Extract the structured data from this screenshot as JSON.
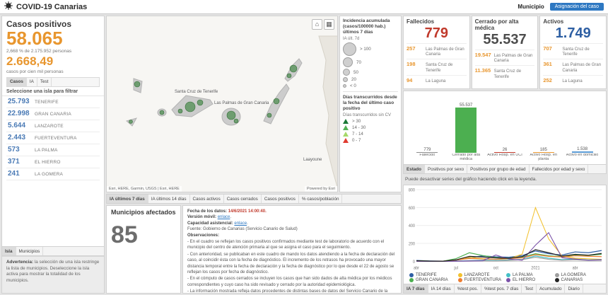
{
  "colors": {
    "accent_orange": "#e8962e",
    "island_value_blue": "#4a7ab5",
    "assign_button_blue": "#2e78c2",
    "selected_tab_bg": "#dcdcdc",
    "fallecidos_red": "#c0392b",
    "cerrado_gray": "#4d4d4d",
    "activos_blue": "#2e5fa3"
  },
  "header": {
    "title": "COVID-19 Canarias",
    "municipio_label": "Municipio",
    "assign_button": "Asignación del caso"
  },
  "left": {
    "title": "Casos positivos",
    "total": "58.065",
    "subtitle": "2,668 % de 2.175.952 personas",
    "rate": "2.668,49",
    "rate_label": "casos por cien mil personas",
    "tabs": [
      {
        "label": "Casos",
        "selected": true
      },
      {
        "label": "IA",
        "selected": false
      },
      {
        "label": "Test",
        "selected": false
      }
    ],
    "filter_label": "Seleccione una isla para filtrar",
    "islands": [
      {
        "value": "25.793",
        "name": "TENERIFE"
      },
      {
        "value": "22.998",
        "name": "GRAN CANARIA"
      },
      {
        "value": "5.644",
        "name": "LANZAROTE"
      },
      {
        "value": "2.443",
        "name": "FUERTEVENTURA"
      },
      {
        "value": "573",
        "name": "LA PALMA"
      },
      {
        "value": "371",
        "name": "EL HIERRO"
      },
      {
        "value": "241",
        "name": "LA GOMERA"
      }
    ],
    "bottom_tabs": [
      {
        "label": "Isla",
        "selected": true
      },
      {
        "label": "Municipios",
        "selected": false
      }
    ],
    "warning_title": "Advertencia:",
    "warning_text": " la selección de una isla restringe la lista de municipios. Deseleccione la isla activa para mostrar la totalidad de los municipios."
  },
  "map": {
    "labels": [
      "Santa Cruz de Tenerife",
      "Las Palmas de Gran Canaria",
      "Laayoune"
    ],
    "attribution": "Esri, HERE, Garmin, USGS | Esri, HERE",
    "powered": "Powered by Esri",
    "tabs": [
      {
        "label": "IA últimos 7 días",
        "selected": true
      },
      {
        "label": "IA últimos 14 días",
        "selected": false
      },
      {
        "label": "Casos activos",
        "selected": false
      },
      {
        "label": "Casos cerrados",
        "selected": false
      },
      {
        "label": "Casos positivos",
        "selected": false
      },
      {
        "label": "% casos/población",
        "selected": false
      }
    ]
  },
  "legend": {
    "title": "Incidencia acumulada (casos/100000 hab.) últimos 7 días",
    "subtitle": "IA últ. 7d",
    "circles": [
      {
        "label": "> 100",
        "size": 19
      },
      {
        "label": "70",
        "size": 14
      },
      {
        "label": "50",
        "size": 10
      },
      {
        "label": "20",
        "size": 7
      },
      {
        "label": "< 0",
        "size": 5
      }
    ],
    "days_title": "Días transcurridos desde la fecha del último caso positivo",
    "days_subtitle": "Días transcurridos sin CV",
    "days_classes": [
      {
        "label": "> 30",
        "color": "#1b7837"
      },
      {
        "label": "14 - 30",
        "color": "#52b153"
      },
      {
        "label": "7 - 14",
        "color": "#a6d96a"
      },
      {
        "label": "0 - 7",
        "color": "#e03b30"
      }
    ]
  },
  "municipios": {
    "title": "Municipios afectados",
    "value": "85"
  },
  "info": {
    "fecha_label": "Fecha de los datos: ",
    "fecha": "14/6/2021 14:00:40.",
    "version_label": "Versión móvil: ",
    "version_link": "enlace",
    "capacidad_label": "Capacidad asistencial: ",
    "capacidad_link": "enlace",
    "fuente": "Fuente: Gobierno de Canarias (Servicio Canario de Salud)",
    "observaciones_title": "Observaciones:",
    "observaciones": [
      "- En el cuadro se reflejan los casos positivos confirmados mediante test de laboratorio de acuerdo con el municipio del centro de atención primaria al que se asigna el caso para el seguimiento.",
      "- Con anterioridad, se publicaban en este cuadro de mando los datos atendiendo a la fecha de declaración del caso, al coincidir ésta con la fecha de diagnóstico. El incremento de los retrasos ha provocado una mayor distancia temporal entre la fecha de declaración y la fecha de diagnóstico por lo que desde el 22 de agosto se reflejan los casos por fecha de diagnóstico.",
      "- En el cómputo de casos cerrados se incluyen los casos que han sido dados de alta médica por los médicos correspondientes y cuyo caso ha sido revisado y cerrado por la autoridad epidemiológica.",
      "- La información mostrada refleja datos procedentes de distintas bases de datos del Servicio Canario de la Salud, y está sujeta a revisión y depuración. Más información en..."
    ]
  },
  "stats": [
    {
      "title": "Fallecidos",
      "value": "779",
      "color": "#c0392b",
      "items": [
        {
          "value": "257",
          "label": "Las Palmas de Gran Canaria"
        },
        {
          "value": "198",
          "label": "Santa Cruz de Tenerife"
        },
        {
          "value": "94",
          "label": "La Laguna"
        }
      ]
    },
    {
      "title": "Cerrado por alta médica",
      "value": "55.537",
      "color": "#4d4d4d",
      "items": [
        {
          "value": "19.547",
          "label": "Las Palmas de Gran Canaria"
        },
        {
          "value": "11.365",
          "label": "Santa Cruz de Tenerife"
        }
      ]
    },
    {
      "title": "Activos",
      "value": "1.749",
      "color": "#2e5fa3",
      "items": [
        {
          "value": "707",
          "label": "Santa Cruz de Tenerife"
        },
        {
          "value": "361",
          "label": "Las Palmas de Gran Canaria"
        },
        {
          "value": "252",
          "label": "La Laguna"
        }
      ]
    }
  ],
  "right": {
    "hint": "Puede desactivar series del gráfico haciendo click en la leyenda.",
    "estado_tabs": [
      {
        "label": "Estado",
        "selected": true
      },
      {
        "label": "Positivos por sexo",
        "selected": false
      },
      {
        "label": "Positivos por grupo de edad",
        "selected": false
      },
      {
        "label": "Fallecidos por edad y sexo",
        "selected": false
      }
    ],
    "chart_tabs": [
      {
        "label": "IA 7 días",
        "selected": true
      },
      {
        "label": "IA 14 días",
        "selected": false
      },
      {
        "label": "%test pos.",
        "selected": false
      },
      {
        "label": "%test pos. 7 días",
        "selected": false
      },
      {
        "label": "Test",
        "selected": false
      },
      {
        "label": "Acumulado",
        "selected": false
      },
      {
        "label": "Diario",
        "selected": false
      }
    ]
  },
  "chart_data": [
    {
      "type": "bar",
      "title": "Estado",
      "categories": [
        "Fallecido",
        "Cerrado por alta médica",
        "Activo Hosp. en UCI",
        "Activo Hosp. en planta",
        "Activo en domicilio"
      ],
      "values": [
        779,
        55537,
        26,
        185,
        1538
      ],
      "value_labels": [
        "779",
        "55.537",
        "26",
        "185",
        "1.538"
      ],
      "colors": [
        "#8d8d8d",
        "#4caf50",
        "#c0392b",
        "#e8962e",
        "#5b9bd5"
      ],
      "ylim": [
        0,
        60000
      ],
      "grid": false,
      "legend_position": "none"
    },
    {
      "type": "line",
      "title": "IA 7 días por isla",
      "x": [
        "abr",
        "may",
        "jun",
        "jul",
        "ago",
        "sep",
        "oct",
        "nov",
        "dic",
        "ene",
        "feb",
        "mar",
        "abr",
        "may",
        "jun"
      ],
      "x_tick_positions": [
        0,
        3,
        6,
        9,
        12
      ],
      "x_tick_labels": [
        "abr",
        "jul",
        "oct",
        "2021",
        "abr"
      ],
      "ylim": [
        0,
        800
      ],
      "yticks": [
        0,
        200,
        400,
        600,
        800
      ],
      "grid": true,
      "legend_position": "bottom",
      "series": [
        {
          "name": "TENERIFE",
          "color": "#2f5fa5",
          "values": [
            10,
            4,
            2,
            12,
            40,
            60,
            50,
            45,
            65,
            115,
            85,
            70,
            105,
            95,
            120
          ]
        },
        {
          "name": "LANZAROTE",
          "color": "#f2c12e",
          "values": [
            5,
            2,
            1,
            15,
            45,
            30,
            22,
            28,
            80,
            600,
            250,
            60,
            35,
            28,
            22
          ]
        },
        {
          "name": "LA PALMA",
          "color": "#45c0c7",
          "values": [
            2,
            1,
            0,
            3,
            8,
            12,
            10,
            14,
            22,
            60,
            35,
            18,
            25,
            14,
            18
          ]
        },
        {
          "name": "LA GOMERA",
          "color": "#9e9e9e",
          "values": [
            1,
            0,
            0,
            2,
            5,
            6,
            4,
            10,
            18,
            45,
            22,
            12,
            16,
            10,
            12
          ]
        },
        {
          "name": "GRAN CANARIA",
          "color": "#4caf50",
          "values": [
            6,
            2,
            1,
            30,
            95,
            65,
            42,
            36,
            48,
            85,
            62,
            52,
            72,
            66,
            78
          ]
        },
        {
          "name": "FUERTEVENTURA",
          "color": "#ed7d31",
          "values": [
            3,
            1,
            1,
            14,
            32,
            26,
            22,
            32,
            38,
            75,
            55,
            48,
            62,
            56,
            52
          ]
        },
        {
          "name": "EL HIERRO",
          "color": "#7b52a8",
          "values": [
            0,
            0,
            0,
            1,
            3,
            6,
            70,
            25,
            12,
            180,
            320,
            40,
            25,
            12,
            16
          ]
        },
        {
          "name": "CANARIAS",
          "color": "#222222",
          "values": [
            6,
            2,
            1,
            16,
            55,
            48,
            38,
            34,
            52,
            130,
            95,
            58,
            78,
            68,
            88
          ]
        }
      ]
    }
  ]
}
